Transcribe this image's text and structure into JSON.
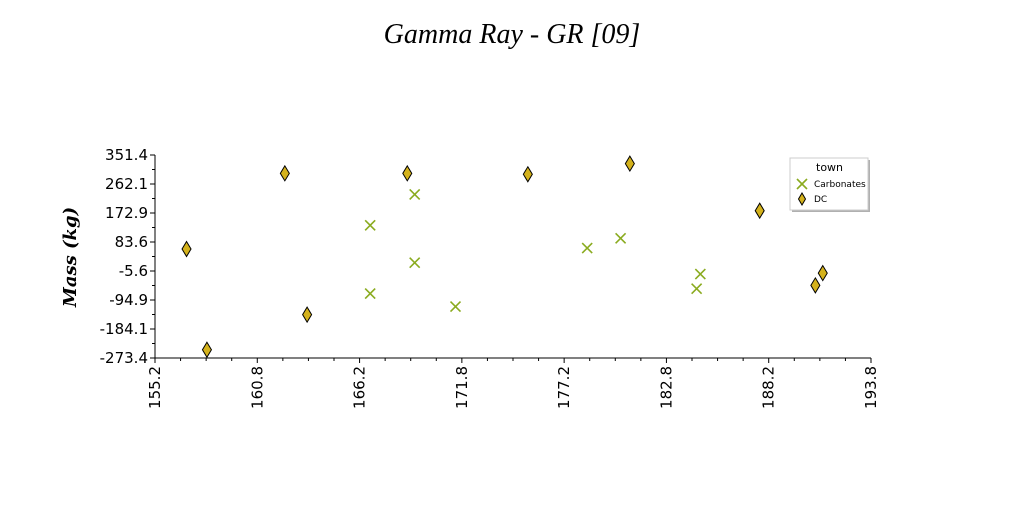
{
  "chart_data": {
    "type": "scatter",
    "title": "Gamma Ray - GR [09]",
    "xlabel": "",
    "ylabel": "Mass (kg)",
    "xlim": [
      155.2,
      193.8
    ],
    "ylim": [
      -273.4,
      351.4
    ],
    "x_ticks": [
      "155.2",
      "160.8",
      "166.2",
      "171.8",
      "177.2",
      "182.8",
      "188.2",
      "193.8"
    ],
    "y_ticks": [
      "351.4",
      "262.1",
      "172.9",
      "83.6",
      "-5.6",
      "-94.9",
      "-184.1",
      "-273.4"
    ],
    "legend": {
      "title": "town",
      "position": "top-right"
    },
    "grid": false,
    "series": [
      {
        "name": "Carbonates",
        "marker": "x",
        "color": "#8aab1f",
        "points": [
          [
            166.8,
            135
          ],
          [
            166.8,
            -75
          ],
          [
            169.2,
            230
          ],
          [
            169.2,
            20
          ],
          [
            171.4,
            -115
          ],
          [
            178.5,
            65
          ],
          [
            180.3,
            95
          ],
          [
            184.4,
            -60
          ],
          [
            184.6,
            -15
          ]
        ]
      },
      {
        "name": "DC",
        "marker": "diamond",
        "color": "#d4b21c",
        "points": [
          [
            156.9,
            62
          ],
          [
            158.0,
            -248
          ],
          [
            162.2,
            295
          ],
          [
            163.4,
            -140
          ],
          [
            168.8,
            295
          ],
          [
            175.3,
            292
          ],
          [
            180.8,
            325
          ],
          [
            187.8,
            180
          ],
          [
            190.8,
            -50
          ],
          [
            191.2,
            -12
          ]
        ]
      }
    ]
  }
}
